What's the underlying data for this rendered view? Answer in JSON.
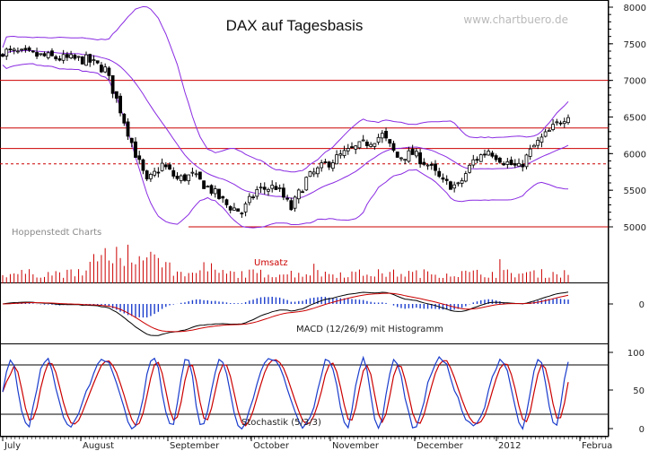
{
  "chart_data": {
    "type": "candlestick",
    "title": "DAX auf Tagesbasis",
    "watermark": "www.chartbuero.de",
    "source": "Hoppenstedt Charts",
    "y_ticks": [
      8000,
      7500,
      7000,
      6500,
      6000,
      5500,
      5000
    ],
    "y_range": [
      4950,
      8050
    ],
    "x_ticks": [
      "July",
      "August",
      "September",
      "October",
      "November",
      "December",
      "2012",
      "Februa"
    ],
    "horizontal_lines": [
      {
        "value": 7000,
        "style": "solid"
      },
      {
        "value": 6350,
        "style": "solid"
      },
      {
        "value": 6070,
        "style": "solid"
      },
      {
        "value": 5860,
        "style": "dashed"
      },
      {
        "value": 5000,
        "style": "solid"
      }
    ],
    "key_levels": [
      {
        "month": "July",
        "close": 7250
      },
      {
        "month": "August",
        "close": 5550
      },
      {
        "month": "September",
        "close": 5200
      },
      {
        "month": "October",
        "close": 6150
      },
      {
        "month": "November",
        "close": 5700
      },
      {
        "month": "December",
        "close": 5900
      },
      {
        "month": "2012",
        "close": 6550
      }
    ],
    "volume_label": "Umsatz",
    "macd_label": "MACD (12/26/9) mit Histogramm",
    "macd_ticks": [
      0
    ],
    "stoch_label": "Stochastik (5/3/3)",
    "stoch_ticks": [
      100,
      50,
      0
    ],
    "colors": {
      "candle": "#000000",
      "bollinger": "#8a2be2",
      "hline": "#cc0000",
      "volume": "#cc0000",
      "macd_line": "#000000",
      "signal_line": "#cc0000",
      "histogram": "#1a3ccc",
      "stoch_k": "#1a3ccc",
      "stoch_d": "#cc0000"
    }
  }
}
